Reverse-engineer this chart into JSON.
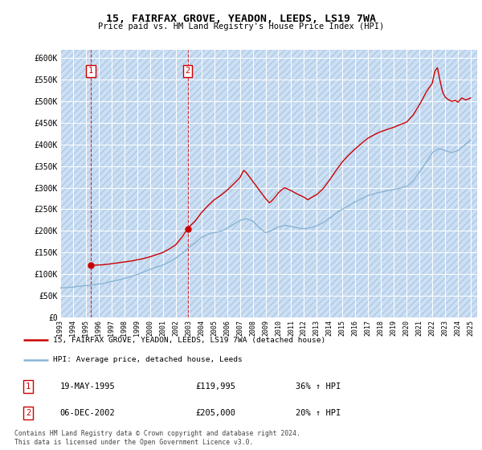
{
  "title1": "15, FAIRFAX GROVE, YEADON, LEEDS, LS19 7WA",
  "title2": "Price paid vs. HM Land Registry's House Price Index (HPI)",
  "ylabel_ticks": [
    "£0",
    "£50K",
    "£100K",
    "£150K",
    "£200K",
    "£250K",
    "£300K",
    "£350K",
    "£400K",
    "£450K",
    "£500K",
    "£550K",
    "£600K"
  ],
  "ytick_values": [
    0,
    50000,
    100000,
    150000,
    200000,
    250000,
    300000,
    350000,
    400000,
    450000,
    500000,
    550000,
    600000
  ],
  "xlim": [
    1993.0,
    2025.5
  ],
  "ylim": [
    0,
    620000
  ],
  "hpi_color": "#8ab4d4",
  "price_color": "#cc0000",
  "annotation_color": "#cc0000",
  "sale1_x": 1995.38,
  "sale1_y": 119995,
  "sale2_x": 2002.93,
  "sale2_y": 205000,
  "legend_line1": "15, FAIRFAX GROVE, YEADON, LEEDS, LS19 7WA (detached house)",
  "legend_line2": "HPI: Average price, detached house, Leeds",
  "note1_label": "1",
  "note1_date": "19-MAY-1995",
  "note1_price": "£119,995",
  "note1_hpi": "36% ↑ HPI",
  "note2_label": "2",
  "note2_date": "06-DEC-2002",
  "note2_price": "£205,000",
  "note2_hpi": "20% ↑ HPI",
  "footer": "Contains HM Land Registry data © Crown copyright and database right 2024.\nThis data is licensed under the Open Government Licence v3.0.",
  "hpi_data": [
    [
      1993.0,
      68000
    ],
    [
      1993.5,
      68500
    ],
    [
      1994.0,
      70000
    ],
    [
      1994.5,
      72000
    ],
    [
      1995.0,
      73000
    ],
    [
      1995.38,
      74000
    ],
    [
      1995.5,
      75000
    ],
    [
      1996.0,
      77000
    ],
    [
      1996.5,
      79000
    ],
    [
      1997.0,
      83000
    ],
    [
      1997.5,
      86000
    ],
    [
      1998.0,
      90000
    ],
    [
      1998.5,
      94000
    ],
    [
      1999.0,
      99000
    ],
    [
      1999.5,
      105000
    ],
    [
      2000.0,
      111000
    ],
    [
      2000.5,
      116000
    ],
    [
      2001.0,
      121000
    ],
    [
      2001.5,
      128000
    ],
    [
      2002.0,
      137000
    ],
    [
      2002.5,
      148000
    ],
    [
      2002.93,
      158000
    ],
    [
      2003.0,
      161000
    ],
    [
      2003.5,
      172000
    ],
    [
      2004.0,
      185000
    ],
    [
      2004.5,
      192000
    ],
    [
      2005.0,
      196000
    ],
    [
      2005.5,
      199000
    ],
    [
      2006.0,
      206000
    ],
    [
      2006.5,
      215000
    ],
    [
      2007.0,
      224000
    ],
    [
      2007.5,
      228000
    ],
    [
      2008.0,
      223000
    ],
    [
      2008.5,
      208000
    ],
    [
      2009.0,
      196000
    ],
    [
      2009.5,
      201000
    ],
    [
      2010.0,
      209000
    ],
    [
      2010.5,
      213000
    ],
    [
      2011.0,
      210000
    ],
    [
      2011.5,
      207000
    ],
    [
      2012.0,
      205000
    ],
    [
      2012.5,
      207000
    ],
    [
      2013.0,
      212000
    ],
    [
      2013.5,
      219000
    ],
    [
      2014.0,
      230000
    ],
    [
      2014.5,
      241000
    ],
    [
      2015.0,
      250000
    ],
    [
      2015.5,
      259000
    ],
    [
      2016.0,
      267000
    ],
    [
      2016.5,
      275000
    ],
    [
      2017.0,
      282000
    ],
    [
      2017.5,
      286000
    ],
    [
      2018.0,
      290000
    ],
    [
      2018.5,
      293000
    ],
    [
      2019.0,
      296000
    ],
    [
      2019.5,
      299000
    ],
    [
      2020.0,
      303000
    ],
    [
      2020.5,
      316000
    ],
    [
      2021.0,
      336000
    ],
    [
      2021.5,
      358000
    ],
    [
      2022.0,
      381000
    ],
    [
      2022.5,
      391000
    ],
    [
      2023.0,
      386000
    ],
    [
      2023.5,
      381000
    ],
    [
      2024.0,
      386000
    ],
    [
      2024.5,
      398000
    ],
    [
      2025.0,
      410000
    ]
  ],
  "price_data": [
    [
      1995.38,
      119995
    ],
    [
      1995.5,
      120500
    ],
    [
      1996.0,
      121000
    ],
    [
      1996.5,
      122000
    ],
    [
      1997.0,
      124000
    ],
    [
      1997.5,
      126000
    ],
    [
      1998.0,
      128000
    ],
    [
      1998.5,
      130000
    ],
    [
      1999.0,
      133000
    ],
    [
      1999.5,
      136000
    ],
    [
      2000.0,
      140000
    ],
    [
      2000.5,
      145000
    ],
    [
      2001.0,
      150000
    ],
    [
      2001.5,
      158000
    ],
    [
      2002.0,
      168000
    ],
    [
      2002.5,
      186000
    ],
    [
      2002.93,
      205000
    ],
    [
      2003.0,
      208000
    ],
    [
      2003.5,
      222000
    ],
    [
      2004.0,
      242000
    ],
    [
      2004.5,
      258000
    ],
    [
      2005.0,
      272000
    ],
    [
      2005.5,
      282000
    ],
    [
      2006.0,
      294000
    ],
    [
      2006.5,
      308000
    ],
    [
      2007.0,
      323000
    ],
    [
      2007.3,
      340000
    ],
    [
      2007.5,
      335000
    ],
    [
      2008.0,
      315000
    ],
    [
      2008.5,
      295000
    ],
    [
      2009.0,
      275000
    ],
    [
      2009.3,
      265000
    ],
    [
      2009.5,
      270000
    ],
    [
      2009.8,
      280000
    ],
    [
      2010.0,
      288000
    ],
    [
      2010.3,
      296000
    ],
    [
      2010.5,
      300000
    ],
    [
      2011.0,
      293000
    ],
    [
      2011.5,
      285000
    ],
    [
      2012.0,
      278000
    ],
    [
      2012.3,
      272000
    ],
    [
      2012.5,
      276000
    ],
    [
      2013.0,
      284000
    ],
    [
      2013.5,
      298000
    ],
    [
      2014.0,
      318000
    ],
    [
      2014.5,
      340000
    ],
    [
      2015.0,
      360000
    ],
    [
      2015.5,
      376000
    ],
    [
      2016.0,
      390000
    ],
    [
      2016.5,
      403000
    ],
    [
      2017.0,
      415000
    ],
    [
      2017.5,
      423000
    ],
    [
      2018.0,
      430000
    ],
    [
      2018.5,
      435000
    ],
    [
      2019.0,
      440000
    ],
    [
      2019.5,
      446000
    ],
    [
      2020.0,
      452000
    ],
    [
      2020.5,
      468000
    ],
    [
      2021.0,
      492000
    ],
    [
      2021.5,
      520000
    ],
    [
      2022.0,
      542000
    ],
    [
      2022.2,
      570000
    ],
    [
      2022.4,
      578000
    ],
    [
      2022.6,
      548000
    ],
    [
      2022.8,
      522000
    ],
    [
      2023.0,
      510000
    ],
    [
      2023.2,
      505000
    ],
    [
      2023.5,
      500000
    ],
    [
      2023.8,
      502000
    ],
    [
      2024.0,
      498000
    ],
    [
      2024.3,
      508000
    ],
    [
      2024.6,
      503000
    ],
    [
      2025.0,
      508000
    ]
  ]
}
